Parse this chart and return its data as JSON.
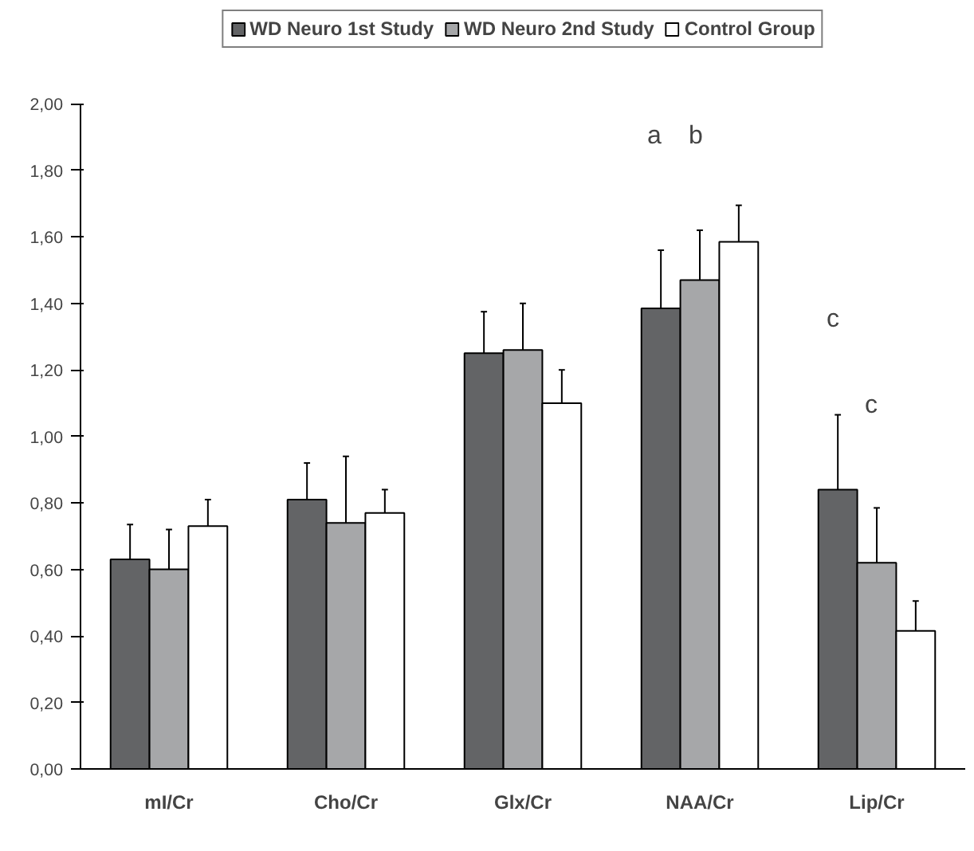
{
  "chart_data": {
    "type": "bar",
    "categories": [
      "mI/Cr",
      "Cho/Cr",
      "Glx/Cr",
      "NAA/Cr",
      "Lip/Cr"
    ],
    "series": [
      {
        "name": "WD Neuro 1st Study",
        "color": "#636466",
        "values": [
          0.63,
          0.81,
          1.25,
          1.385,
          0.84
        ],
        "errors": [
          [
            0.63,
            0.735
          ],
          [
            0.81,
            0.92
          ],
          [
            1.25,
            1.375
          ],
          [
            1.385,
            1.56
          ],
          [
            0.84,
            1.065
          ]
        ]
      },
      {
        "name": "WD Neuro 2nd Study",
        "color": "#a6a7a9",
        "values": [
          0.6,
          0.74,
          1.26,
          1.47,
          0.62
        ],
        "errors": [
          [
            0.6,
            0.72
          ],
          [
            0.74,
            0.94
          ],
          [
            1.26,
            1.4
          ],
          [
            1.47,
            1.62
          ],
          [
            0.62,
            0.785
          ]
        ]
      },
      {
        "name": "Control Group",
        "color": "#ffffff",
        "values": [
          0.73,
          0.77,
          1.1,
          1.585,
          0.415
        ],
        "errors": [
          [
            0.73,
            0.81
          ],
          [
            0.77,
            0.84
          ],
          [
            1.1,
            1.2
          ],
          [
            1.585,
            1.695
          ],
          [
            0.415,
            0.505
          ]
        ]
      }
    ],
    "ylim": [
      0,
      2
    ],
    "yticks": [
      {
        "value": 0,
        "label": "0,00"
      },
      {
        "value": 0.2,
        "label": "0,20"
      },
      {
        "value": 0.4,
        "label": "0,40"
      },
      {
        "value": 0.6,
        "label": "0,60"
      },
      {
        "value": 0.8,
        "label": "0,80"
      },
      {
        "value": 1.0,
        "label": "1,00"
      },
      {
        "value": 1.2,
        "label": "1,20"
      },
      {
        "value": 1.4,
        "label": "1,40"
      },
      {
        "value": 1.6,
        "label": "1,60"
      },
      {
        "value": 1.8,
        "label": "1,80"
      },
      {
        "value": 2.0,
        "label": "2,00"
      }
    ],
    "annotations": [
      "a",
      "b",
      "c",
      "c"
    ],
    "grid": false,
    "legend": "top"
  }
}
